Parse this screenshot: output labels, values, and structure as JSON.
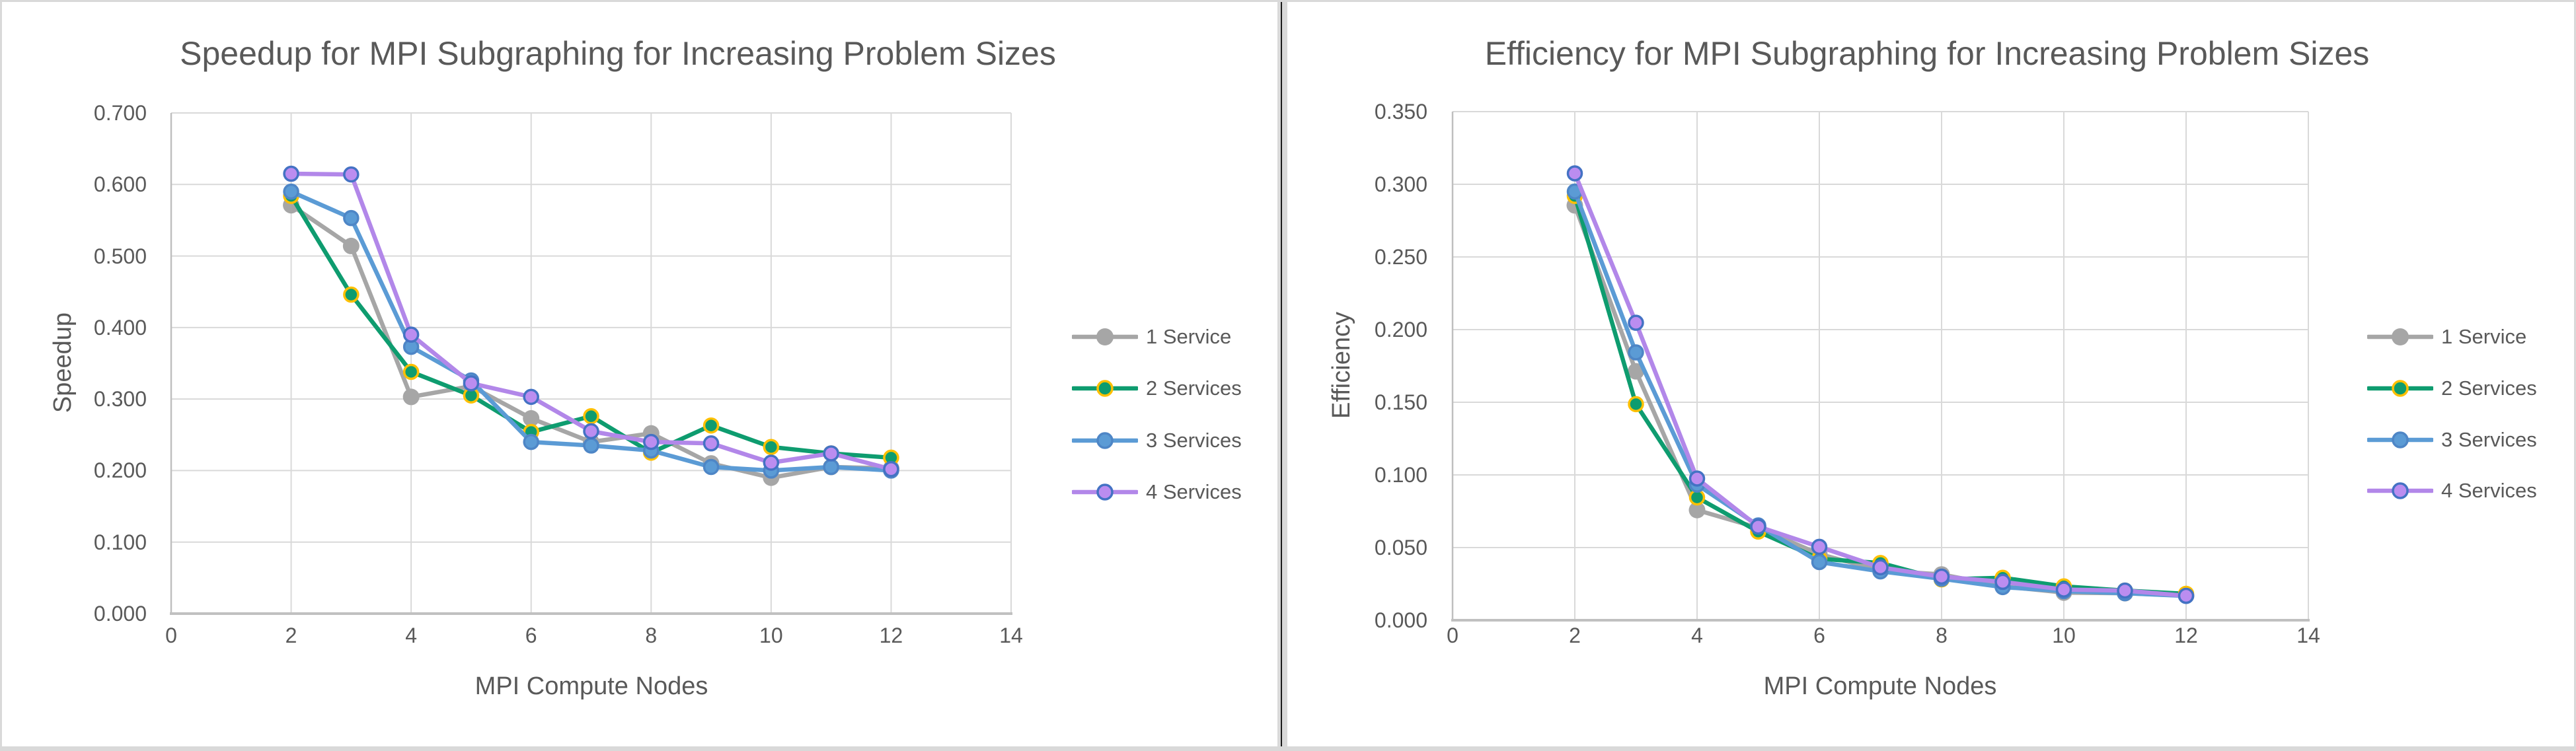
{
  "colors": {
    "background": "#FFFFFF",
    "text": "#595959",
    "gridline": "#D9D9D9",
    "axis_line": "#BFBFBF",
    "divider_band": "#D9D9D9",
    "divider_line": "#1A1A1A",
    "series_gray": "#A6A6A6",
    "series_green": "#0E9C6F",
    "series_green_marker_ring": "#FFC000",
    "series_blue": "#5B9BD5",
    "series_blue_marker_ring": "#4E86C6",
    "series_purple": "#B287E9",
    "series_purple_marker_ring": "#4472C4"
  },
  "legend_labels": [
    "1 Service",
    "2 Services",
    "3 Services",
    "4 Services"
  ],
  "chart_data": [
    {
      "type": "line",
      "title": "Speedup for MPI Subgraphing for Increasing Problem Sizes",
      "xlabel": "MPI Compute Nodes",
      "ylabel": "Speedup",
      "xlim": [
        0,
        14
      ],
      "ylim": [
        0.0,
        0.7
      ],
      "x_ticks": [
        0,
        2,
        4,
        6,
        8,
        10,
        12,
        14
      ],
      "y_ticks": [
        "0.000",
        "0.100",
        "0.200",
        "0.300",
        "0.400",
        "0.500",
        "0.600",
        "0.700"
      ],
      "grid": true,
      "legend_position": "right",
      "x": [
        2,
        3,
        4,
        5,
        6,
        7,
        8,
        9,
        10,
        11,
        12
      ],
      "series": [
        {
          "name": "1 Service",
          "line_color": "#A6A6A6",
          "marker_fill": "#A6A6A6",
          "marker_border": "#A6A6A6",
          "values": [
            0.571,
            0.514,
            0.303,
            0.318,
            0.273,
            0.24,
            0.252,
            0.21,
            0.19,
            0.205,
            0.203
          ]
        },
        {
          "name": "2 Services",
          "line_color": "#0E9C6F",
          "marker_fill": "#0E9C6F",
          "marker_border": "#FFC000",
          "values": [
            0.584,
            0.446,
            0.338,
            0.305,
            0.254,
            0.276,
            0.225,
            0.263,
            0.233,
            0.224,
            0.218
          ]
        },
        {
          "name": "3 Services",
          "line_color": "#5B9BD5",
          "marker_fill": "#5B9BD5",
          "marker_border": "#4E86C6",
          "values": [
            0.59,
            0.553,
            0.373,
            0.326,
            0.24,
            0.235,
            0.228,
            0.205,
            0.2,
            0.205,
            0.2
          ]
        },
        {
          "name": "4 Services",
          "line_color": "#B287E9",
          "marker_fill": "#BB8DF0",
          "marker_border": "#4472C4",
          "values": [
            0.615,
            0.614,
            0.39,
            0.322,
            0.303,
            0.255,
            0.24,
            0.238,
            0.211,
            0.224,
            0.202
          ]
        }
      ]
    },
    {
      "type": "line",
      "title": "Efficiency for MPI Subgraphing for Increasing Problem Sizes",
      "xlabel": "MPI Compute Nodes",
      "ylabel": "Efficiency",
      "xlim": [
        0,
        14
      ],
      "ylim": [
        0.0,
        0.35
      ],
      "x_ticks": [
        0,
        2,
        4,
        6,
        8,
        10,
        12,
        14
      ],
      "y_ticks": [
        "0.000",
        "0.050",
        "0.100",
        "0.150",
        "0.200",
        "0.250",
        "0.300",
        "0.350"
      ],
      "grid": true,
      "legend_position": "right",
      "x": [
        2,
        3,
        4,
        5,
        6,
        7,
        8,
        9,
        10,
        11,
        12
      ],
      "series": [
        {
          "name": "1 Service",
          "line_color": "#A6A6A6",
          "marker_fill": "#A6A6A6",
          "marker_border": "#A6A6A6",
          "values": [
            0.2855,
            0.1713,
            0.0758,
            0.0636,
            0.0455,
            0.0343,
            0.0315,
            0.0233,
            0.019,
            0.0186,
            0.0169
          ]
        },
        {
          "name": "2 Services",
          "line_color": "#0E9C6F",
          "marker_fill": "#0E9C6F",
          "marker_border": "#FFC000",
          "values": [
            0.292,
            0.1487,
            0.0845,
            0.061,
            0.0423,
            0.0394,
            0.0281,
            0.0292,
            0.0233,
            0.0204,
            0.0182
          ]
        },
        {
          "name": "3 Services",
          "line_color": "#5B9BD5",
          "marker_fill": "#5B9BD5",
          "marker_border": "#4E86C6",
          "values": [
            0.295,
            0.1843,
            0.0933,
            0.0652,
            0.04,
            0.0336,
            0.0285,
            0.0228,
            0.02,
            0.0186,
            0.0167
          ]
        },
        {
          "name": "4 Services",
          "line_color": "#B287E9",
          "marker_fill": "#BB8DF0",
          "marker_border": "#4472C4",
          "values": [
            0.3075,
            0.2047,
            0.0975,
            0.0644,
            0.0505,
            0.0364,
            0.03,
            0.0264,
            0.0211,
            0.0204,
            0.0168
          ]
        }
      ]
    }
  ]
}
